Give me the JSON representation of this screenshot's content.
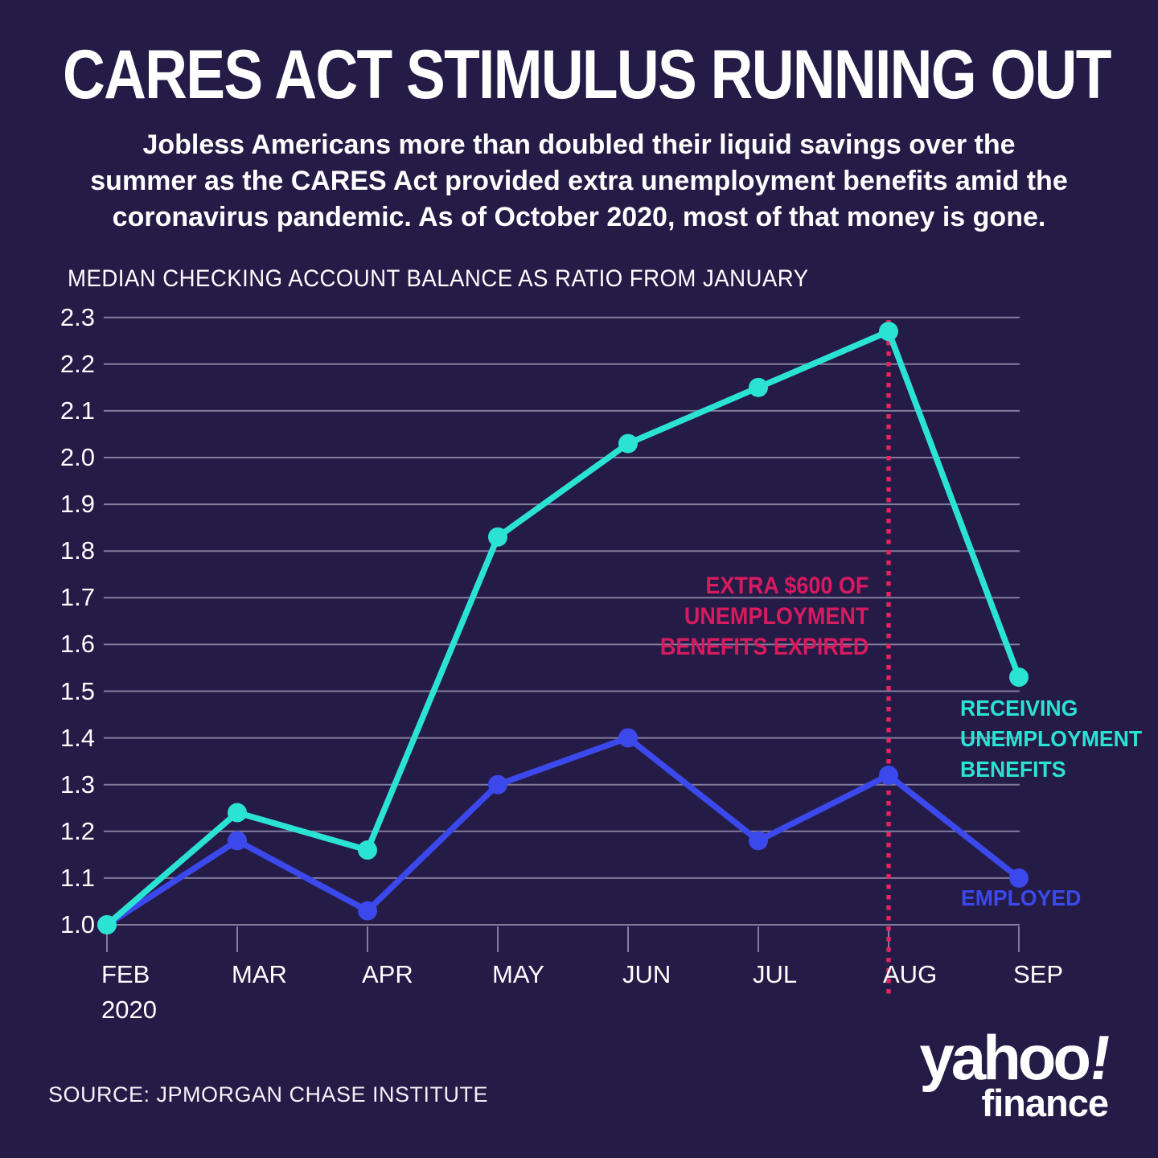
{
  "header": {
    "title": "CARES ACT STIMULUS RUNNING OUT",
    "subtitle_lines": [
      "Jobless Americans more than doubled their liquid savings over the",
      "summer as the CARES Act provided extra unemployment benefits amid the",
      "coronavirus pandemic. As of October 2020, most of that money is gone."
    ]
  },
  "chart_data": {
    "type": "line",
    "title": "MEDIAN CHECKING ACCOUNT BALANCE AS RATIO FROM JANUARY",
    "ylabel": "MEDIAN CHECKING ACCOUNT BALANCE AS RATIO FROM JANUARY",
    "xlabel": "",
    "categories": [
      "FEB",
      "MAR",
      "APR",
      "MAY",
      "JUN",
      "JUL",
      "AUG",
      "SEP"
    ],
    "x_sublabel": "2020",
    "ylim": [
      1.0,
      2.3
    ],
    "y_ticks": [
      "2.3",
      "2.2",
      "2.1",
      "2.0",
      "1.9",
      "1.8",
      "1.7",
      "1.6",
      "1.5",
      "1.4",
      "1.3",
      "1.2",
      "1.1",
      "1.0"
    ],
    "grid": true,
    "series": [
      {
        "name": "RECEIVING UNEMPLOYMENT BENEFITS",
        "color": "#2BE3D3",
        "values": [
          1.0,
          1.24,
          1.16,
          1.83,
          2.03,
          2.15,
          2.27,
          1.53
        ]
      },
      {
        "name": "EMPLOYED",
        "color": "#3B49EC",
        "values": [
          1.0,
          1.18,
          1.03,
          1.3,
          1.4,
          1.18,
          1.32,
          1.1
        ]
      }
    ],
    "annotation": {
      "lines": [
        "EXTRA $600 OF",
        "UNEMPLOYMENT",
        "BENEFITS EXPIRED"
      ],
      "at_month": "AUG"
    },
    "legend": [
      {
        "series": "RECEIVING UNEMPLOYMENT BENEFITS",
        "label_lines": [
          "RECEIVING",
          "UNEMPLOYMENT",
          "BENEFITS"
        ],
        "position": "right-of-last-point"
      },
      {
        "series": "EMPLOYED",
        "label_lines": [
          "EMPLOYED"
        ],
        "position": "right-of-last-point"
      }
    ]
  },
  "colors": {
    "background": "#251B47",
    "line_benefits": "#2BE3D3",
    "line_employed": "#3B49EC",
    "annotation_text": "#D81B5F",
    "dotted_line": "#E8215F",
    "gridline": "#837D9D",
    "text_primary": "#FFFFFF"
  },
  "footer": {
    "source": "SOURCE: JPMORGAN CHASE INSTITUTE",
    "logo": {
      "brand": "yahoo",
      "bang": "!",
      "sub": "finance"
    }
  }
}
